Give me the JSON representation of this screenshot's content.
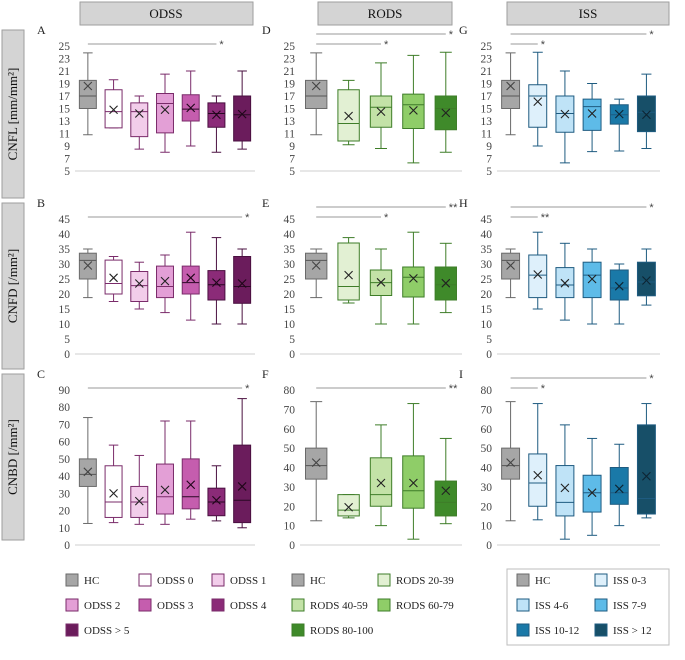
{
  "columns": [
    "ODSS",
    "RODS",
    "ISS"
  ],
  "rows": [
    "CNFL [mm/mm²]",
    "CNFD [/mm²]",
    "CNBD [/mm²]"
  ],
  "colors": {
    "HC": "#a6a6a6",
    "ODSS": [
      "#ffffff",
      "#f2cdea",
      "#e39fd6",
      "#c55dae",
      "#8b2b78",
      "#6b1c5c"
    ],
    "RODS": [
      "#e2f0d3",
      "#c3e2a7",
      "#8fcd68",
      "#3f8a2a"
    ],
    "ISS": [
      "#def0fb",
      "#bfe3f7",
      "#5ebbe8",
      "#1a79a8",
      "#174f68"
    ]
  },
  "legends": {
    "ODSS": [
      "HC",
      "ODSS 0",
      "ODSS 1",
      "ODSS 2",
      "ODSS 3",
      "ODSS 4",
      "ODSS > 5"
    ],
    "RODS": [
      "HC",
      "RODS 20-39",
      "RODS 40-59",
      "RODS 60-79",
      "RODS 80-100"
    ],
    "ISS": [
      "HC",
      "ISS 0-3",
      "ISS 4-6",
      "ISS 7-9",
      "ISS 10-12",
      "ISS > 12"
    ]
  },
  "chart_data": [
    {
      "panel": "A",
      "type": "box",
      "ylabel": "CNFL [mm/mm²]",
      "ylim": [
        5,
        25
      ],
      "yticks": [
        5,
        7,
        9,
        11,
        13,
        15,
        17,
        19,
        21,
        23,
        25
      ],
      "categories": [
        "HC",
        "ODSS 0",
        "ODSS 1",
        "ODSS 2",
        "ODSS 3",
        "ODSS 4",
        "ODSS > 5"
      ],
      "boxes": [
        [
          10.8,
          15.0,
          17.0,
          19.5,
          23.9,
          18.6
        ],
        [
          11.9,
          11.9,
          14.5,
          18.0,
          19.6,
          14.8
        ],
        [
          8.5,
          10.5,
          14.5,
          15.9,
          17.0,
          14.2
        ],
        [
          8.0,
          11.1,
          15.8,
          17.4,
          20.5,
          14.8
        ],
        [
          9.0,
          13.0,
          14.9,
          17.2,
          21.0,
          15.1
        ],
        [
          8.0,
          12.0,
          14.2,
          15.9,
          17.0,
          14.0
        ],
        [
          8.5,
          9.8,
          14.0,
          17.0,
          21.0,
          14.1
        ]
      ],
      "significance": [
        {
          "span": [
            0,
            5
          ],
          "label": "*"
        }
      ]
    },
    {
      "panel": "B",
      "type": "box",
      "ylabel": "CNFD [/mm²]",
      "ylim": [
        0,
        45
      ],
      "yticks": [
        0,
        5,
        10,
        15,
        20,
        25,
        30,
        35,
        40,
        45
      ],
      "categories": [
        "HC",
        "ODSS 0",
        "ODSS 1",
        "ODSS 2",
        "ODSS 3",
        "ODSS 4",
        "ODSS > 5"
      ],
      "boxes": [
        [
          18.8,
          25.0,
          31.2,
          33.6,
          35.0,
          29.5
        ],
        [
          17.5,
          20.0,
          23.5,
          31.3,
          32.5,
          25.4
        ],
        [
          15.0,
          17.5,
          22.8,
          27.5,
          30.6,
          23.5
        ],
        [
          13.8,
          18.8,
          22.5,
          29.3,
          33.0,
          24.3
        ],
        [
          11.3,
          20.0,
          23.8,
          29.3,
          40.6,
          25.4
        ],
        [
          10.0,
          18.0,
          23.1,
          27.8,
          38.8,
          23.8
        ],
        [
          10.0,
          16.9,
          22.5,
          32.5,
          35.0,
          23.5
        ]
      ],
      "significance": [
        {
          "span": [
            0,
            6
          ],
          "label": "*"
        }
      ]
    },
    {
      "panel": "C",
      "type": "box",
      "ylabel": "CNBD [/mm²]",
      "ylim": [
        0,
        90
      ],
      "yticks": [
        0,
        10,
        20,
        30,
        40,
        50,
        60,
        70,
        80,
        90
      ],
      "categories": [
        "HC",
        "ODSS 0",
        "ODSS 1",
        "ODSS 2",
        "ODSS 3",
        "ODSS 4",
        "ODSS > 5"
      ],
      "boxes": [
        [
          12.5,
          34.0,
          41.0,
          50.0,
          74.0,
          42.5
        ],
        [
          13.0,
          16.0,
          25.0,
          46.0,
          58.0,
          30.0
        ],
        [
          12.0,
          16.0,
          25.0,
          34.0,
          52.0,
          25.5
        ],
        [
          12.0,
          18.0,
          28.0,
          47.0,
          72.0,
          32.0
        ],
        [
          15.0,
          21.0,
          28.0,
          50.0,
          72.0,
          35.0
        ],
        [
          14.0,
          17.0,
          25.0,
          33.0,
          46.0,
          26.0
        ],
        [
          10.0,
          13.0,
          26.0,
          58.0,
          85.0,
          34.0
        ]
      ],
      "significance": [
        {
          "span": [
            0,
            6
          ],
          "label": "*"
        }
      ]
    },
    {
      "panel": "D",
      "type": "box",
      "ylabel": "CNFL [mm/mm²]",
      "ylim": [
        5,
        25
      ],
      "yticks": [
        5,
        7,
        9,
        11,
        13,
        15,
        17,
        19,
        21,
        23,
        25
      ],
      "categories": [
        "HC",
        "RODS 20-39",
        "RODS 40-59",
        "RODS 60-79",
        "RODS 80-100"
      ],
      "boxes": [
        [
          10.8,
          15.0,
          17.0,
          19.5,
          23.9,
          18.6
        ],
        [
          9.2,
          9.8,
          12.6,
          18.0,
          19.5,
          13.8
        ],
        [
          8.6,
          12.0,
          15.2,
          17.0,
          22.3,
          14.5
        ],
        [
          6.3,
          11.8,
          15.6,
          17.3,
          23.5,
          14.7
        ],
        [
          8.0,
          11.6,
          15.0,
          17.0,
          24.0,
          14.3
        ]
      ],
      "significance": [
        {
          "span": [
            0,
            2
          ],
          "label": "*"
        },
        {
          "span": [
            0,
            4
          ],
          "label": "*"
        }
      ]
    },
    {
      "panel": "E",
      "type": "box",
      "ylabel": "CNFD [/mm²]",
      "ylim": [
        0,
        45
      ],
      "yticks": [
        0,
        5,
        10,
        15,
        20,
        25,
        30,
        35,
        40,
        45
      ],
      "categories": [
        "HC",
        "RODS 20-39",
        "RODS 40-59",
        "RODS 60-79",
        "RODS 80-100"
      ],
      "boxes": [
        [
          18.8,
          25.0,
          31.2,
          33.6,
          35.0,
          29.5
        ],
        [
          17.0,
          18.0,
          22.5,
          37.0,
          38.8,
          26.3
        ],
        [
          10.0,
          19.5,
          23.8,
          28.0,
          35.0,
          23.9
        ],
        [
          10.0,
          19.0,
          25.6,
          29.0,
          40.6,
          25.2
        ],
        [
          13.8,
          18.0,
          23.1,
          29.0,
          36.9,
          23.6
        ]
      ],
      "significance": [
        {
          "span": [
            0,
            2
          ],
          "label": "*"
        },
        {
          "span": [
            0,
            4
          ],
          "label": "**"
        }
      ]
    },
    {
      "panel": "F",
      "type": "box",
      "ylabel": "CNBD [/mm²]",
      "ylim": [
        0,
        80
      ],
      "yticks": [
        0,
        10,
        20,
        30,
        40,
        50,
        60,
        70,
        80
      ],
      "categories": [
        "HC",
        "RODS 20-39",
        "RODS 40-59",
        "RODS 60-79",
        "RODS 80-100"
      ],
      "boxes": [
        [
          12.5,
          34.0,
          41.0,
          50.0,
          74.0,
          42.5
        ],
        [
          14.0,
          15.0,
          18.0,
          26.0,
          26.0,
          19.5
        ],
        [
          10.0,
          20.0,
          26.0,
          45.0,
          62.0,
          32.0
        ],
        [
          3.0,
          19.0,
          28.0,
          46.0,
          73.0,
          32.0
        ],
        [
          11.0,
          15.0,
          22.0,
          33.0,
          55.0,
          28.0
        ]
      ],
      "significance": [
        {
          "span": [
            0,
            4
          ],
          "label": "**"
        }
      ]
    },
    {
      "panel": "G",
      "type": "box",
      "ylabel": "CNFL [mm/mm²]",
      "ylim": [
        5,
        25
      ],
      "yticks": [
        5,
        7,
        9,
        11,
        13,
        15,
        17,
        19,
        21,
        23,
        25
      ],
      "categories": [
        "HC",
        "ISS 0-3",
        "ISS 4-6",
        "ISS 7-9",
        "ISS 10-12",
        "ISS > 12"
      ],
      "boxes": [
        [
          10.8,
          15.0,
          17.0,
          19.5,
          23.9,
          18.6
        ],
        [
          9.0,
          12.0,
          17.0,
          18.8,
          24.0,
          16.1
        ],
        [
          6.3,
          11.2,
          14.2,
          17.0,
          21.0,
          14.1
        ],
        [
          8.1,
          11.5,
          15.3,
          16.5,
          19.0,
          14.2
        ],
        [
          8.2,
          12.5,
          14.0,
          15.6,
          16.5,
          14.1
        ],
        [
          8.6,
          11.3,
          14.4,
          17.0,
          20.5,
          14.0
        ]
      ],
      "significance": [
        {
          "span": [
            0,
            1
          ],
          "label": "*"
        },
        {
          "span": [
            0,
            5
          ],
          "label": "*"
        }
      ]
    },
    {
      "panel": "H",
      "type": "box",
      "ylabel": "CNFD [/mm²]",
      "ylim": [
        0,
        45
      ],
      "yticks": [
        0,
        5,
        10,
        15,
        20,
        25,
        30,
        35,
        40,
        45
      ],
      "categories": [
        "HC",
        "ISS 0-3",
        "ISS 4-6",
        "ISS 7-9",
        "ISS 10-12",
        "ISS > 12"
      ],
      "boxes": [
        [
          18.8,
          25.0,
          31.2,
          33.6,
          35.0,
          29.5
        ],
        [
          15.0,
          18.8,
          26.3,
          33.0,
          40.6,
          26.5
        ],
        [
          11.3,
          18.8,
          23.0,
          28.8,
          36.9,
          23.6
        ],
        [
          10.0,
          18.8,
          26.3,
          30.6,
          35.0,
          25.0
        ],
        [
          10.0,
          18.0,
          22.0,
          28.0,
          30.0,
          22.6
        ],
        [
          16.3,
          19.4,
          24.0,
          30.6,
          35.0,
          24.5
        ]
      ],
      "significance": [
        {
          "span": [
            0,
            1
          ],
          "label": "**"
        },
        {
          "span": [
            0,
            5
          ],
          "label": "*"
        }
      ]
    },
    {
      "panel": "I",
      "type": "box",
      "ylabel": "CNBD [/mm²]",
      "ylim": [
        0,
        80
      ],
      "yticks": [
        0,
        10,
        20,
        30,
        40,
        50,
        60,
        70,
        80
      ],
      "categories": [
        "HC",
        "ISS 0-3",
        "ISS 4-6",
        "ISS 7-9",
        "ISS 10-12",
        "ISS > 12"
      ],
      "boxes": [
        [
          12.5,
          34.0,
          41.0,
          50.0,
          74.0,
          42.5
        ],
        [
          13.0,
          20.0,
          32.0,
          47.0,
          73.0,
          36.0
        ],
        [
          3.0,
          15.0,
          22.0,
          41.0,
          62.0,
          29.5
        ],
        [
          5.0,
          17.0,
          27.0,
          36.0,
          55.0,
          27.0
        ],
        [
          10.0,
          21.0,
          27.0,
          40.0,
          52.0,
          29.0
        ],
        [
          14.0,
          16.0,
          24.0,
          62.0,
          73.0,
          35.5
        ]
      ],
      "significance": [
        {
          "span": [
            0,
            1
          ],
          "label": "*"
        },
        {
          "span": [
            0,
            5
          ],
          "label": "*"
        }
      ]
    }
  ]
}
